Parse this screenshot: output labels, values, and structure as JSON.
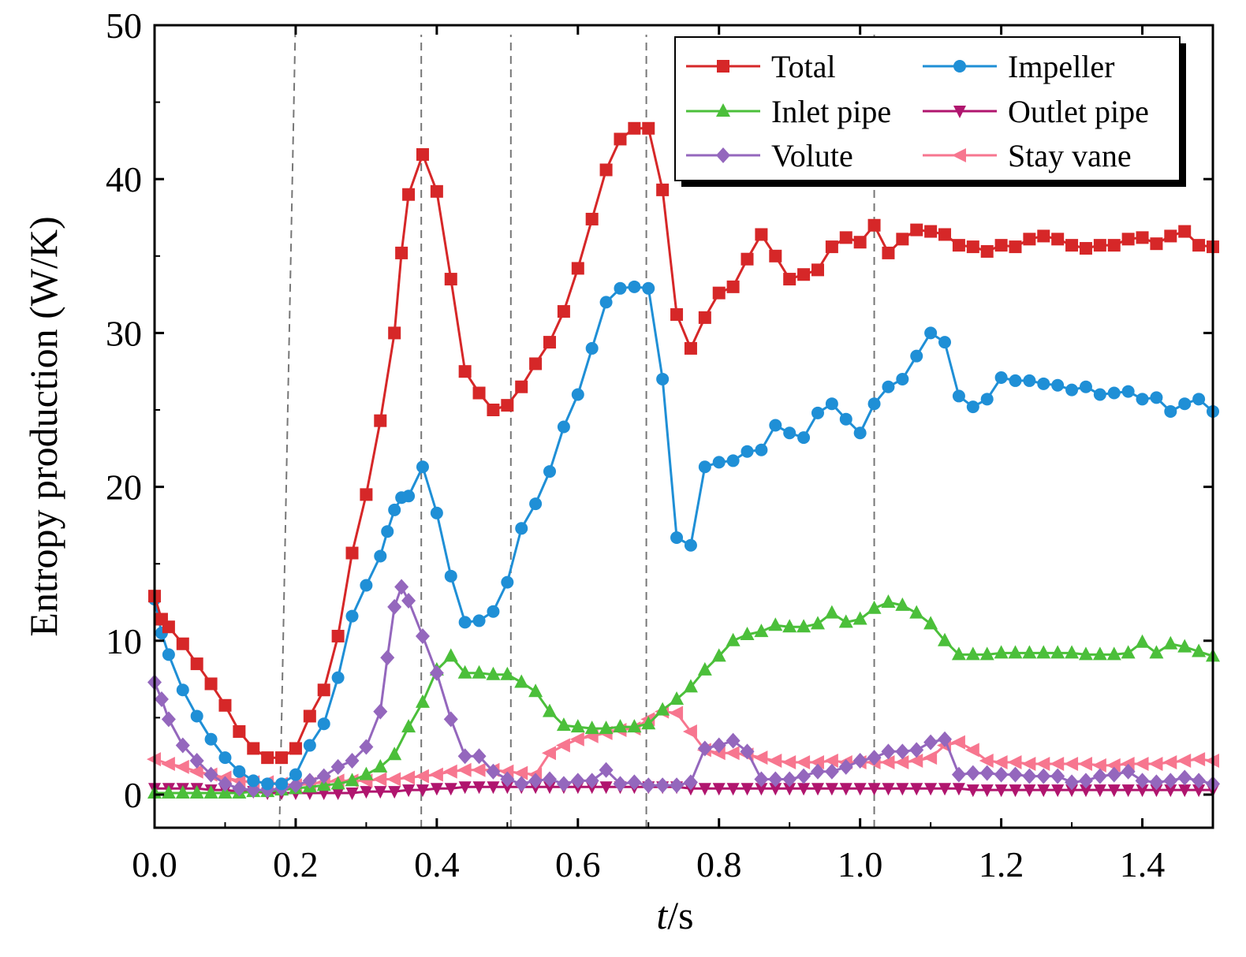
{
  "chart_data": {
    "type": "line",
    "title": "",
    "xlabel_italic": "t",
    "xlabel_unit": "/s",
    "ylabel": "Entropy production (W/K)",
    "xlim": [
      0,
      1.5
    ],
    "ylim": [
      -2,
      50
    ],
    "xticks": [
      "0.0",
      "0.2",
      "0.4",
      "0.6",
      "0.8",
      "1.0",
      "1.2",
      "1.4"
    ],
    "xtick_values": [
      0,
      0.2,
      0.4,
      0.6,
      0.8,
      1.0,
      1.2,
      1.4
    ],
    "yticks": [
      "0",
      "10",
      "20",
      "30",
      "40",
      "50"
    ],
    "ytick_values": [
      0,
      10,
      20,
      30,
      40,
      50
    ],
    "reference_lines_x": [
      0.177,
      0.378,
      0.505,
      0.697,
      1.02
    ],
    "legend_position": "top-right",
    "series": [
      {
        "name": "Total",
        "color": "#d62728",
        "marker": "square",
        "x": [
          0,
          0.01,
          0.02,
          0.04,
          0.06,
          0.08,
          0.1,
          0.12,
          0.14,
          0.16,
          0.18,
          0.2,
          0.22,
          0.24,
          0.26,
          0.28,
          0.3,
          0.32,
          0.34,
          0.35,
          0.36,
          0.38,
          0.4,
          0.42,
          0.44,
          0.46,
          0.48,
          0.5,
          0.52,
          0.54,
          0.56,
          0.58,
          0.6,
          0.62,
          0.64,
          0.66,
          0.68,
          0.7,
          0.72,
          0.74,
          0.76,
          0.78,
          0.8,
          0.82,
          0.84,
          0.86,
          0.88,
          0.9,
          0.92,
          0.94,
          0.96,
          0.98,
          1.0,
          1.02,
          1.04,
          1.06,
          1.08,
          1.1,
          1.12,
          1.14,
          1.16,
          1.18,
          1.2,
          1.22,
          1.24,
          1.26,
          1.28,
          1.3,
          1.32,
          1.34,
          1.36,
          1.38,
          1.4,
          1.42,
          1.44,
          1.46,
          1.48,
          1.5
        ],
        "values": [
          12.9,
          11.4,
          10.9,
          9.8,
          8.5,
          7.2,
          5.8,
          4.1,
          3.0,
          2.4,
          2.4,
          3.0,
          5.1,
          6.8,
          10.3,
          15.7,
          19.5,
          24.3,
          30.0,
          35.2,
          39.0,
          41.6,
          39.2,
          33.5,
          27.5,
          26.1,
          25.0,
          25.3,
          26.5,
          28.0,
          29.4,
          31.4,
          34.2,
          37.4,
          40.6,
          42.6,
          43.3,
          43.3,
          39.3,
          31.2,
          29.0,
          31.0,
          32.6,
          33.0,
          34.8,
          36.4,
          35.0,
          33.5,
          33.8,
          34.1,
          35.6,
          36.2,
          35.9,
          37.0,
          35.2,
          36.1,
          36.7,
          36.6,
          36.4,
          35.7,
          35.6,
          35.3,
          35.7,
          35.6,
          36.1,
          36.3,
          36.1,
          35.7,
          35.5,
          35.7,
          35.7,
          36.1,
          36.2,
          35.8,
          36.3,
          36.6,
          35.7,
          35.6
        ]
      },
      {
        "name": "Impeller",
        "color": "#1f8fd6",
        "marker": "circle",
        "x": [
          0,
          0.01,
          0.02,
          0.04,
          0.06,
          0.08,
          0.1,
          0.12,
          0.14,
          0.16,
          0.18,
          0.2,
          0.22,
          0.24,
          0.26,
          0.28,
          0.3,
          0.32,
          0.33,
          0.34,
          0.35,
          0.36,
          0.38,
          0.4,
          0.42,
          0.44,
          0.46,
          0.48,
          0.5,
          0.52,
          0.54,
          0.56,
          0.58,
          0.6,
          0.62,
          0.64,
          0.66,
          0.68,
          0.7,
          0.72,
          0.74,
          0.76,
          0.78,
          0.8,
          0.82,
          0.84,
          0.86,
          0.88,
          0.9,
          0.92,
          0.94,
          0.96,
          0.98,
          1.0,
          1.02,
          1.04,
          1.06,
          1.08,
          1.1,
          1.12,
          1.14,
          1.16,
          1.18,
          1.2,
          1.22,
          1.24,
          1.26,
          1.28,
          1.3,
          1.32,
          1.34,
          1.36,
          1.38,
          1.4,
          1.42,
          1.44,
          1.46,
          1.48,
          1.5
        ],
        "values": [
          12.7,
          10.5,
          9.1,
          6.8,
          5.1,
          3.6,
          2.4,
          1.5,
          0.9,
          0.7,
          0.7,
          1.3,
          3.2,
          4.6,
          7.6,
          11.6,
          13.6,
          15.5,
          17.1,
          18.5,
          19.3,
          19.4,
          21.3,
          18.3,
          14.2,
          11.2,
          11.3,
          11.9,
          13.8,
          17.3,
          18.9,
          21.0,
          23.9,
          26.0,
          29.0,
          32.0,
          32.9,
          33.0,
          32.9,
          27.0,
          16.7,
          16.2,
          21.3,
          21.6,
          21.7,
          22.3,
          22.4,
          24.0,
          23.5,
          23.2,
          24.8,
          25.4,
          24.4,
          23.5,
          25.4,
          26.5,
          27.0,
          28.5,
          30.0,
          29.4,
          25.9,
          25.2,
          25.7,
          27.1,
          26.9,
          26.9,
          26.7,
          26.6,
          26.3,
          26.5,
          26.0,
          26.1,
          26.2,
          25.7,
          25.8,
          24.9,
          25.4,
          25.7,
          24.9
        ]
      },
      {
        "name": "Inlet pipe",
        "color": "#4bbf3a",
        "marker": "triangle-up",
        "x": [
          0,
          0.02,
          0.04,
          0.06,
          0.08,
          0.1,
          0.12,
          0.14,
          0.16,
          0.18,
          0.2,
          0.22,
          0.24,
          0.26,
          0.28,
          0.3,
          0.32,
          0.34,
          0.36,
          0.38,
          0.4,
          0.42,
          0.44,
          0.46,
          0.48,
          0.5,
          0.52,
          0.54,
          0.56,
          0.58,
          0.6,
          0.62,
          0.64,
          0.66,
          0.68,
          0.7,
          0.72,
          0.74,
          0.76,
          0.78,
          0.8,
          0.82,
          0.84,
          0.86,
          0.88,
          0.9,
          0.92,
          0.94,
          0.96,
          0.98,
          1.0,
          1.02,
          1.04,
          1.06,
          1.08,
          1.1,
          1.12,
          1.14,
          1.16,
          1.18,
          1.2,
          1.22,
          1.24,
          1.26,
          1.28,
          1.3,
          1.32,
          1.34,
          1.36,
          1.38,
          1.4,
          1.42,
          1.44,
          1.46,
          1.48,
          1.5
        ],
        "values": [
          0.1,
          0.1,
          0.1,
          0.1,
          0.1,
          0.1,
          0.1,
          0.2,
          0.2,
          0.3,
          0.4,
          0.5,
          0.6,
          0.7,
          0.9,
          1.3,
          1.8,
          2.6,
          4.4,
          6.0,
          8.1,
          9.0,
          7.9,
          7.9,
          7.8,
          7.8,
          7.3,
          6.7,
          5.4,
          4.5,
          4.4,
          4.3,
          4.3,
          4.4,
          4.4,
          4.6,
          5.5,
          6.2,
          7.0,
          8.1,
          9.0,
          10.0,
          10.4,
          10.6,
          11.0,
          10.9,
          10.9,
          11.1,
          11.8,
          11.2,
          11.4,
          12.1,
          12.5,
          12.3,
          11.8,
          11.1,
          10.0,
          9.1,
          9.1,
          9.1,
          9.2,
          9.2,
          9.2,
          9.2,
          9.2,
          9.2,
          9.1,
          9.1,
          9.1,
          9.2,
          9.9,
          9.2,
          9.8,
          9.6,
          9.3,
          9.0
        ]
      },
      {
        "name": "Outlet pipe",
        "color": "#b0156e",
        "marker": "triangle-down",
        "x": [
          0,
          0.02,
          0.04,
          0.06,
          0.08,
          0.1,
          0.12,
          0.14,
          0.16,
          0.18,
          0.2,
          0.22,
          0.24,
          0.26,
          0.28,
          0.3,
          0.32,
          0.34,
          0.36,
          0.38,
          0.4,
          0.42,
          0.44,
          0.46,
          0.48,
          0.5,
          0.52,
          0.54,
          0.56,
          0.58,
          0.6,
          0.62,
          0.64,
          0.66,
          0.68,
          0.7,
          0.72,
          0.74,
          0.76,
          0.78,
          0.8,
          0.82,
          0.84,
          0.86,
          0.88,
          0.9,
          0.92,
          0.94,
          0.96,
          0.98,
          1.0,
          1.02,
          1.04,
          1.06,
          1.08,
          1.1,
          1.12,
          1.14,
          1.16,
          1.18,
          1.2,
          1.22,
          1.24,
          1.26,
          1.28,
          1.3,
          1.32,
          1.34,
          1.36,
          1.38,
          1.4,
          1.42,
          1.44,
          1.46,
          1.48,
          1.5
        ],
        "values": [
          0.4,
          0.4,
          0.4,
          0.4,
          0.3,
          0.3,
          0.2,
          0.2,
          0.1,
          0.1,
          0.1,
          0.1,
          0.1,
          0.1,
          0.1,
          0.2,
          0.2,
          0.2,
          0.3,
          0.3,
          0.4,
          0.4,
          0.5,
          0.5,
          0.5,
          0.5,
          0.5,
          0.5,
          0.5,
          0.5,
          0.5,
          0.5,
          0.5,
          0.5,
          0.5,
          0.5,
          0.5,
          0.5,
          0.4,
          0.4,
          0.4,
          0.4,
          0.4,
          0.4,
          0.4,
          0.4,
          0.4,
          0.4,
          0.4,
          0.4,
          0.4,
          0.4,
          0.4,
          0.4,
          0.4,
          0.4,
          0.4,
          0.4,
          0.3,
          0.3,
          0.3,
          0.3,
          0.3,
          0.3,
          0.3,
          0.3,
          0.3,
          0.3,
          0.3,
          0.3,
          0.3,
          0.3,
          0.3,
          0.3,
          0.3,
          0.3
        ]
      },
      {
        "name": "Volute",
        "color": "#9467bd",
        "marker": "diamond",
        "x": [
          0,
          0.01,
          0.02,
          0.04,
          0.06,
          0.08,
          0.1,
          0.12,
          0.14,
          0.16,
          0.18,
          0.2,
          0.22,
          0.24,
          0.26,
          0.28,
          0.3,
          0.32,
          0.33,
          0.34,
          0.35,
          0.36,
          0.38,
          0.4,
          0.42,
          0.44,
          0.46,
          0.48,
          0.5,
          0.52,
          0.54,
          0.56,
          0.58,
          0.6,
          0.62,
          0.64,
          0.66,
          0.68,
          0.7,
          0.72,
          0.74,
          0.76,
          0.78,
          0.8,
          0.82,
          0.84,
          0.86,
          0.88,
          0.9,
          0.92,
          0.94,
          0.96,
          0.98,
          1.0,
          1.02,
          1.04,
          1.06,
          1.08,
          1.1,
          1.12,
          1.14,
          1.16,
          1.18,
          1.2,
          1.22,
          1.24,
          1.26,
          1.28,
          1.3,
          1.32,
          1.34,
          1.36,
          1.38,
          1.4,
          1.42,
          1.44,
          1.46,
          1.48,
          1.5
        ],
        "values": [
          7.3,
          6.2,
          4.9,
          3.2,
          2.2,
          1.3,
          0.7,
          0.4,
          0.3,
          0.3,
          0.4,
          0.6,
          0.9,
          1.2,
          1.8,
          2.2,
          3.1,
          5.4,
          8.9,
          12.2,
          13.5,
          12.6,
          10.3,
          7.9,
          4.9,
          2.5,
          2.5,
          1.5,
          1.0,
          0.7,
          0.9,
          1.0,
          0.7,
          0.9,
          0.9,
          1.6,
          0.7,
          0.8,
          0.6,
          0.6,
          0.6,
          0.8,
          3.0,
          3.2,
          3.5,
          2.8,
          1.0,
          1.0,
          1.0,
          1.2,
          1.5,
          1.5,
          1.8,
          2.2,
          2.4,
          2.8,
          2.8,
          2.9,
          3.4,
          3.6,
          1.3,
          1.4,
          1.4,
          1.3,
          1.3,
          1.2,
          1.2,
          1.2,
          0.8,
          0.9,
          1.2,
          1.3,
          1.5,
          0.9,
          0.8,
          0.9,
          1.1,
          0.9,
          0.7
        ]
      },
      {
        "name": "Stay vane",
        "color": "#f7768f",
        "marker": "triangle-left",
        "x": [
          0,
          0.02,
          0.04,
          0.06,
          0.08,
          0.1,
          0.12,
          0.14,
          0.16,
          0.18,
          0.2,
          0.22,
          0.24,
          0.26,
          0.28,
          0.3,
          0.32,
          0.34,
          0.36,
          0.38,
          0.4,
          0.42,
          0.44,
          0.46,
          0.48,
          0.5,
          0.52,
          0.54,
          0.56,
          0.58,
          0.6,
          0.62,
          0.64,
          0.66,
          0.68,
          0.7,
          0.72,
          0.74,
          0.76,
          0.78,
          0.8,
          0.82,
          0.84,
          0.86,
          0.88,
          0.9,
          0.92,
          0.94,
          0.96,
          0.98,
          1.0,
          1.02,
          1.04,
          1.06,
          1.08,
          1.1,
          1.12,
          1.14,
          1.16,
          1.18,
          1.2,
          1.22,
          1.24,
          1.26,
          1.28,
          1.3,
          1.32,
          1.34,
          1.36,
          1.38,
          1.4,
          1.42,
          1.44,
          1.46,
          1.48,
          1.5
        ],
        "values": [
          2.3,
          2.0,
          1.8,
          1.5,
          1.3,
          1.1,
          0.9,
          0.8,
          0.8,
          0.7,
          0.6,
          0.7,
          0.8,
          0.9,
          0.9,
          0.9,
          1.0,
          1.0,
          1.1,
          1.2,
          1.3,
          1.5,
          1.6,
          1.6,
          1.6,
          1.5,
          1.4,
          1.3,
          2.7,
          3.2,
          3.6,
          3.8,
          4.0,
          4.2,
          4.3,
          4.9,
          5.4,
          5.3,
          4.1,
          2.9,
          2.7,
          2.7,
          2.6,
          2.4,
          2.2,
          2.1,
          2.1,
          2.1,
          2.2,
          2.1,
          2.1,
          2.1,
          2.1,
          2.1,
          2.2,
          2.4,
          3.2,
          3.4,
          2.9,
          2.2,
          2.1,
          2.1,
          2.0,
          2.0,
          2.0,
          2.0,
          2.0,
          1.9,
          1.9,
          2.0,
          2.0,
          2.0,
          2.1,
          2.2,
          2.3,
          2.2
        ]
      }
    ]
  }
}
